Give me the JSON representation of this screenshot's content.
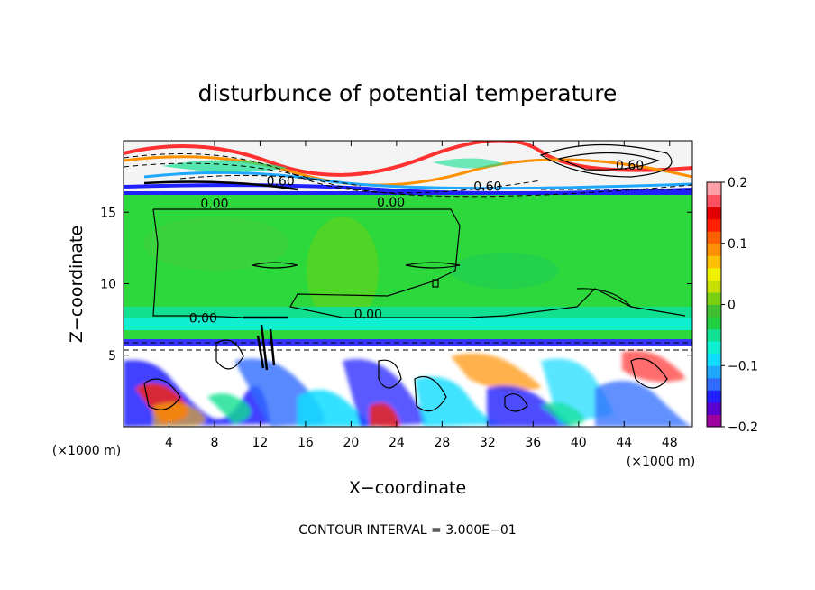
{
  "chart_data": {
    "type": "heatmap",
    "title": "disturbunce of potential temperature",
    "xlabel": "X−coordinate",
    "ylabel": "Z−coordinate",
    "x_unit_left": "(×1000 m)",
    "x_unit_right": "(×1000 m)",
    "footer": "CONTOUR INTERVAL = 3.000E−01",
    "xlim": [
      0,
      50
    ],
    "ylim": [
      0,
      20
    ],
    "x_ticks": [
      4,
      8,
      12,
      16,
      20,
      24,
      28,
      32,
      36,
      40,
      44,
      48
    ],
    "y_ticks": [
      5,
      10,
      15
    ],
    "contour_labels": [
      {
        "text": "0.60",
        "x": 44.5,
        "y": 18.3
      },
      {
        "text": "0.60",
        "x": 13.8,
        "y": 17.2
      },
      {
        "text": "0.60",
        "x": 32.0,
        "y": 16.8
      },
      {
        "text": "0.00",
        "x": 8.0,
        "y": 15.6
      },
      {
        "text": "0.00",
        "x": 23.5,
        "y": 15.7
      },
      {
        "text": "0.00",
        "x": 7.0,
        "y": 7.6
      },
      {
        "text": "0.00",
        "x": 21.5,
        "y": 7.9
      }
    ],
    "colorbar": {
      "min": -0.2,
      "max": 0.2,
      "tick_labels": [
        "0.2",
        "0.1",
        "0",
        "−0.1",
        "−0.2"
      ],
      "colors": [
        "#a000a0",
        "#5a00d0",
        "#1f1fff",
        "#2f6bff",
        "#1fa8ff",
        "#10dcff",
        "#10f0d0",
        "#10e090",
        "#20d040",
        "#40c030",
        "#7ad010",
        "#c8e000",
        "#f0f000",
        "#ffc000",
        "#ff9000",
        "#ff6000",
        "#ff2000",
        "#e00000",
        "#ff5060",
        "#ffa0a8"
      ]
    }
  }
}
